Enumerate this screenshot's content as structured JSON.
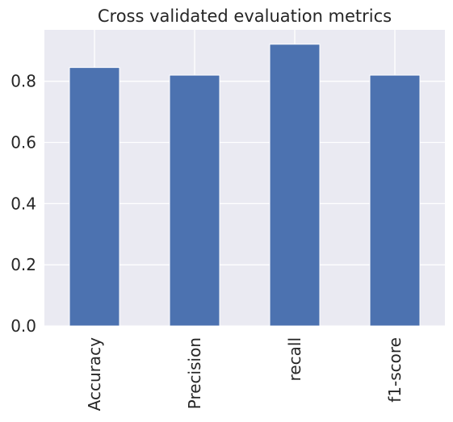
{
  "chart_data": {
    "type": "bar",
    "title": "Cross validated evaluation metrics",
    "xlabel": "",
    "ylabel": "",
    "categories": [
      "Accuracy",
      "Precision",
      "recall",
      "f1-score"
    ],
    "values": [
      0.845,
      0.82,
      0.921,
      0.82
    ],
    "ylim": [
      0,
      0.968
    ],
    "yticks": [
      "0.0",
      "0.2",
      "0.4",
      "0.6",
      "0.8"
    ],
    "grid": true,
    "legend": "none",
    "bar_color": "#4c72b0",
    "background_color": "#eaeaf2",
    "grid_color": "#ffffff"
  }
}
